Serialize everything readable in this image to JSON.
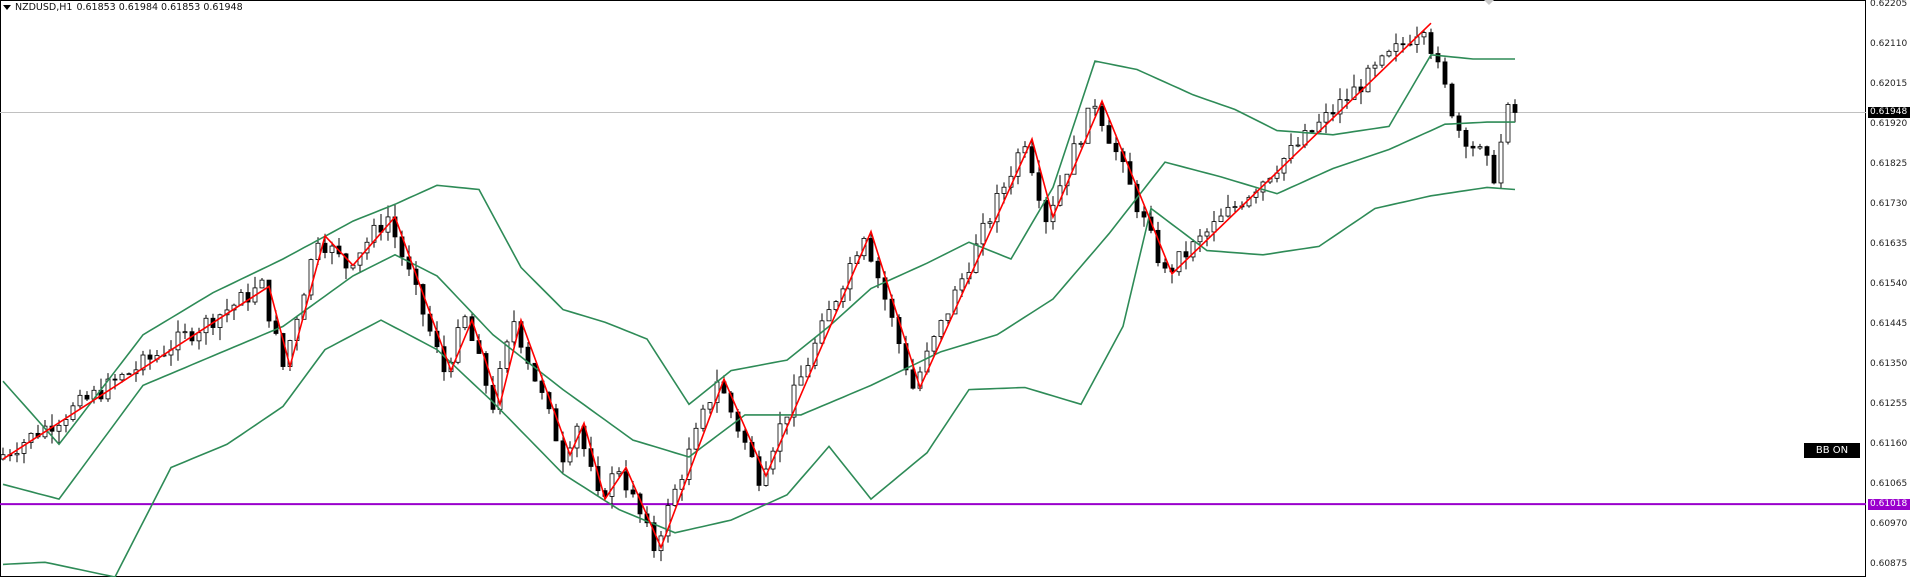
{
  "header": {
    "symbol": "NZDUSD,H1",
    "ohlc": "0.61853 0.61984 0.61853 0.61948"
  },
  "indicator_badge": "BB ON",
  "price_axis": {
    "ticks": [
      "0.62205",
      "0.62110",
      "0.62015",
      "0.61920",
      "0.61825",
      "0.61730",
      "0.61635",
      "0.61540",
      "0.61445",
      "0.61350",
      "0.61255",
      "0.61160",
      "0.61065",
      "0.60970",
      "0.60875"
    ],
    "current_price_label": "0.61948",
    "horizontal_line_label": "0.61018"
  },
  "colors": {
    "bull_candle": "#ffffff",
    "bear_candle": "#000000",
    "bollinger_band": "#2e8b57",
    "zigzag": "#ff0000",
    "horizontal_line": "#9900cc",
    "current_price_line": "#c0c0c0",
    "current_price_tag": "#000000"
  },
  "chart_data": {
    "type": "candlestick",
    "symbol": "NZDUSD",
    "timeframe": "H1",
    "ylim": [
      0.60845,
      0.62215
    ],
    "horizontal_line": 0.61018,
    "current_price": 0.61948,
    "zigzag_points": [
      {
        "bar": 0,
        "price": 0.61125
      },
      {
        "bar": 38,
        "price": 0.61535
      },
      {
        "bar": 41,
        "price": 0.61345
      },
      {
        "bar": 46,
        "price": 0.61655
      },
      {
        "bar": 50,
        "price": 0.61585
      },
      {
        "bar": 56,
        "price": 0.617
      },
      {
        "bar": 64,
        "price": 0.61335
      },
      {
        "bar": 67,
        "price": 0.61455
      },
      {
        "bar": 71,
        "price": 0.61255
      },
      {
        "bar": 74,
        "price": 0.61455
      },
      {
        "bar": 81,
        "price": 0.61135
      },
      {
        "bar": 83,
        "price": 0.6121
      },
      {
        "bar": 86,
        "price": 0.6103
      },
      {
        "bar": 89,
        "price": 0.61105
      },
      {
        "bar": 94,
        "price": 0.60915
      },
      {
        "bar": 103,
        "price": 0.61315
      },
      {
        "bar": 109,
        "price": 0.61085
      },
      {
        "bar": 124,
        "price": 0.61665
      },
      {
        "bar": 131,
        "price": 0.61295
      },
      {
        "bar": 147,
        "price": 0.61885
      },
      {
        "bar": 150,
        "price": 0.617
      },
      {
        "bar": 157,
        "price": 0.61975
      },
      {
        "bar": 167,
        "price": 0.61565
      },
      {
        "bar": 204,
        "price": 0.6216
      }
    ],
    "bollinger_upper": [
      [
        0,
        0.6131
      ],
      [
        8,
        0.6116
      ],
      [
        20,
        0.6142
      ],
      [
        30,
        0.6152
      ],
      [
        40,
        0.616
      ],
      [
        50,
        0.6169
      ],
      [
        56,
        0.6173
      ],
      [
        62,
        0.61775
      ],
      [
        68,
        0.61765
      ],
      [
        74,
        0.6158
      ],
      [
        80,
        0.6148
      ],
      [
        86,
        0.6145
      ],
      [
        92,
        0.6141
      ],
      [
        98,
        0.61255
      ],
      [
        104,
        0.61335
      ],
      [
        112,
        0.6136
      ],
      [
        118,
        0.6144
      ],
      [
        124,
        0.6153
      ],
      [
        132,
        0.6159
      ],
      [
        138,
        0.6164
      ],
      [
        144,
        0.616
      ],
      [
        150,
        0.6177
      ],
      [
        156,
        0.6207
      ],
      [
        162,
        0.6205
      ],
      [
        170,
        0.6199
      ],
      [
        176,
        0.61955
      ],
      [
        182,
        0.61905
      ],
      [
        190,
        0.61895
      ],
      [
        198,
        0.61915
      ],
      [
        204,
        0.62085
      ],
      [
        210,
        0.62075
      ],
      [
        216,
        0.62075
      ]
    ],
    "bollinger_middle": [
      [
        0,
        0.61065
      ],
      [
        8,
        0.6103
      ],
      [
        20,
        0.613
      ],
      [
        30,
        0.6137
      ],
      [
        40,
        0.6144
      ],
      [
        50,
        0.6156
      ],
      [
        56,
        0.6161
      ],
      [
        62,
        0.6156
      ],
      [
        70,
        0.6142
      ],
      [
        80,
        0.6129
      ],
      [
        90,
        0.6117
      ],
      [
        98,
        0.6113
      ],
      [
        106,
        0.6123
      ],
      [
        114,
        0.6123
      ],
      [
        124,
        0.613
      ],
      [
        134,
        0.6138
      ],
      [
        142,
        0.6142
      ],
      [
        150,
        0.61505
      ],
      [
        158,
        0.6166
      ],
      [
        166,
        0.6183
      ],
      [
        174,
        0.61795
      ],
      [
        182,
        0.61755
      ],
      [
        190,
        0.61815
      ],
      [
        198,
        0.6186
      ],
      [
        206,
        0.6192
      ],
      [
        212,
        0.61925
      ],
      [
        216,
        0.61925
      ]
    ],
    "bollinger_lower": [
      [
        0,
        0.60875
      ],
      [
        6,
        0.6088
      ],
      [
        16,
        0.60845
      ],
      [
        24,
        0.61105
      ],
      [
        32,
        0.6116
      ],
      [
        40,
        0.6125
      ],
      [
        46,
        0.61385
      ],
      [
        54,
        0.61455
      ],
      [
        62,
        0.61385
      ],
      [
        70,
        0.6126
      ],
      [
        80,
        0.6109
      ],
      [
        88,
        0.61005
      ],
      [
        96,
        0.6095
      ],
      [
        104,
        0.6098
      ],
      [
        112,
        0.6104
      ],
      [
        118,
        0.61155
      ],
      [
        124,
        0.6103
      ],
      [
        132,
        0.6114
      ],
      [
        138,
        0.6129
      ],
      [
        146,
        0.61295
      ],
      [
        154,
        0.61255
      ],
      [
        160,
        0.6144
      ],
      [
        164,
        0.6172
      ],
      [
        172,
        0.6162
      ],
      [
        180,
        0.6161
      ],
      [
        188,
        0.6163
      ],
      [
        196,
        0.6172
      ],
      [
        204,
        0.6175
      ],
      [
        212,
        0.6177
      ],
      [
        216,
        0.61765
      ]
    ]
  }
}
